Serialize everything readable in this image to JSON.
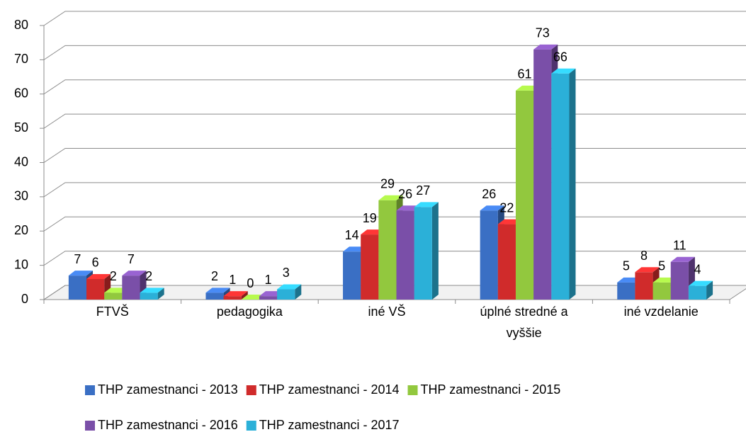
{
  "chart_data": {
    "type": "bar3d",
    "categories": [
      "FTVŠ",
      "pedagogika",
      "iné VŠ",
      "úplné stredné a vyššie",
      "iné vzdelanie"
    ],
    "series": [
      {
        "name": "THP zamestnanci - 2013",
        "color": "#3a6fc4",
        "values": [
          7,
          2,
          14,
          26,
          5
        ]
      },
      {
        "name": "THP zamestnanci - 2014",
        "color": "#d02b2b",
        "values": [
          6,
          1,
          19,
          22,
          8
        ]
      },
      {
        "name": "THP zamestnanci - 2015",
        "color": "#92c83e",
        "values": [
          2,
          0,
          29,
          61,
          5
        ]
      },
      {
        "name": "THP zamestnanci - 2016",
        "color": "#7a4fa8",
        "values": [
          7,
          1,
          26,
          73,
          11
        ]
      },
      {
        "name": "THP zamestnanci - 2017",
        "color": "#2bb0d8",
        "values": [
          2,
          3,
          27,
          66,
          4
        ]
      }
    ],
    "ylim": [
      0,
      80
    ],
    "yticks": [
      0,
      10,
      20,
      30,
      40,
      50,
      60,
      70,
      80
    ],
    "grid": true,
    "legend": "bottom"
  }
}
